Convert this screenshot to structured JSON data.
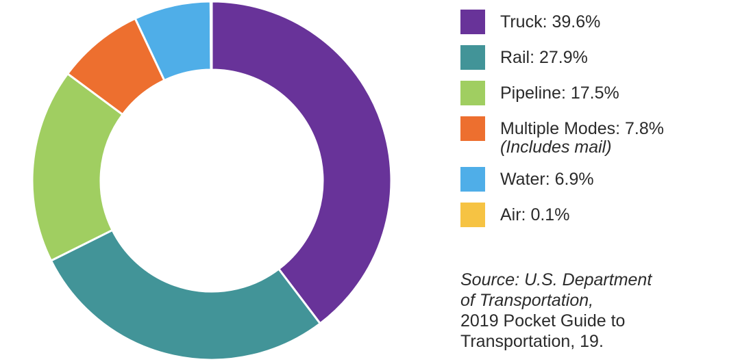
{
  "chart_data": {
    "type": "pie",
    "variant": "donut",
    "slices": [
      {
        "label": "Truck",
        "value": 39.6,
        "color": "#683399",
        "legend": "Truck: 39.6%",
        "note": ""
      },
      {
        "label": "Rail",
        "value": 27.9,
        "color": "#429498",
        "legend": "Rail: 27.9%",
        "note": ""
      },
      {
        "label": "Pipeline",
        "value": 17.5,
        "color": "#A0CE61",
        "legend": "Pipeline: 17.5%",
        "note": ""
      },
      {
        "label": "Multiple Modes",
        "value": 7.8,
        "color": "#ED6F2F",
        "legend": "Multiple Modes: 7.8%",
        "note": "(Includes mail)"
      },
      {
        "label": "Water",
        "value": 6.9,
        "color": "#4FAEE8",
        "legend": "Water: 6.9%",
        "note": ""
      },
      {
        "label": "Air",
        "value": 0.1,
        "color": "#F6C343",
        "legend": "Air: 0.1%",
        "note": ""
      }
    ],
    "legend_position": "right",
    "start": "top, clockwise"
  },
  "source": {
    "line1": "Source: U.S. Department",
    "line2": "of Transportation,",
    "line3": "2019 Pocket Guide to",
    "line4": "Transportation, 19."
  }
}
